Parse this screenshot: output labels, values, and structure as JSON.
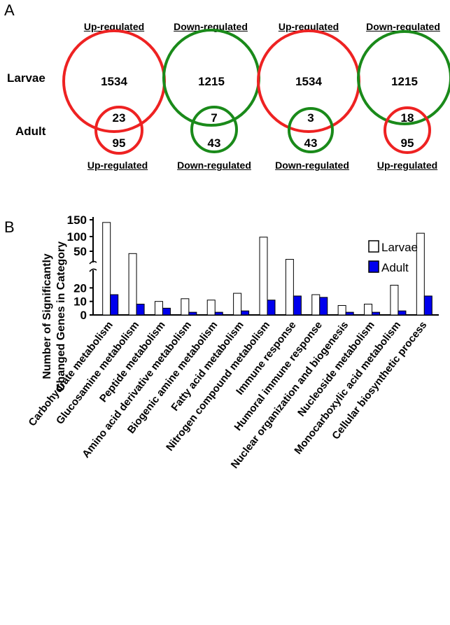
{
  "panel_a": {
    "letter": "A",
    "row_labels": {
      "larvae": "Larvae",
      "adult": "Adult"
    },
    "groups": [
      {
        "top_label": "Up-regulated",
        "bottom_label": "Up-regulated",
        "larvae_count": "1534",
        "overlap": "23",
        "adult_count": "95",
        "larvae_color": "#ee2222",
        "adult_color": "#ee2222"
      },
      {
        "top_label": "Down-regulated",
        "bottom_label": "Down-regulated",
        "larvae_count": "1215",
        "overlap": "7",
        "adult_count": "43",
        "larvae_color": "#1a8a1a",
        "adult_color": "#1a8a1a"
      },
      {
        "top_label": "Up-regulated",
        "bottom_label": "Down-regulated",
        "larvae_count": "1534",
        "overlap": "3",
        "adult_count": "43",
        "larvae_color": "#ee2222",
        "adult_color": "#1a8a1a"
      },
      {
        "top_label": "Down-regulated",
        "bottom_label": "Up-regulated",
        "larvae_count": "1215",
        "overlap": "18",
        "adult_count": "95",
        "larvae_color": "#1a8a1a",
        "adult_color": "#ee2222"
      }
    ]
  },
  "panel_b": {
    "letter": "B"
  },
  "chart_data": {
    "type": "bar",
    "ylabel": "Number of Significantly Changed Genes in Category",
    "y_ticks": [
      "0",
      "10",
      "20",
      "50",
      "100",
      "150"
    ],
    "y_scale": "broken axis (0-30 linear, 30-150 compressed)",
    "legend_position": "top-right",
    "categories": [
      "Carbohydrate metabolism",
      "Glucosamine metabolism",
      "Peptide metabolism",
      "Amino acid derivative metabolism",
      "Biogenic amine metabolism",
      "Fatty acid metabolism",
      "Nitrogen compound metabolism",
      "Immune response",
      "Humoral immune response",
      "Nuclear organization and biogenesis",
      "Nucleoside metabolism",
      "Monocarboxylic acid metabolism",
      "Cellular biosynthetic process"
    ],
    "series": [
      {
        "name": "Larvae",
        "color": "#ffffff",
        "values": [
          142,
          48,
          10,
          12,
          11,
          16,
          98,
          43,
          15,
          7,
          8,
          22,
          110
        ]
      },
      {
        "name": "Adult",
        "color": "#0000ee",
        "values": [
          15,
          8,
          5,
          2,
          2,
          3,
          11,
          14,
          13,
          2,
          2,
          3,
          14
        ]
      }
    ]
  }
}
